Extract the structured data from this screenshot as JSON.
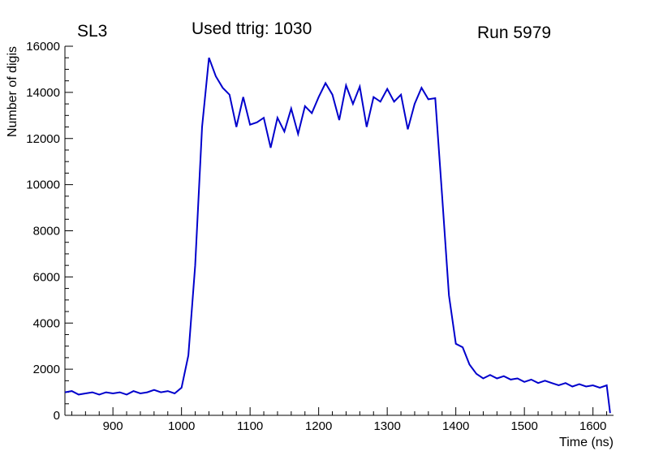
{
  "header": {
    "left_title": "SL3",
    "center_title": "Used ttrig: 1030",
    "right_title": "Run 5979"
  },
  "chart_data": {
    "type": "line",
    "title": "Used ttrig: 1030",
    "xlabel": "Time (ns)",
    "ylabel": "Number of digis",
    "xlim": [
      830,
      1630
    ],
    "ylim": [
      0,
      16000
    ],
    "x_ticks": [
      900,
      1000,
      1100,
      1200,
      1300,
      1400,
      1500,
      1600
    ],
    "y_ticks": [
      0,
      2000,
      4000,
      6000,
      8000,
      10000,
      12000,
      14000,
      16000
    ],
    "x_minor_step": 20,
    "y_minor_step": 500,
    "grid": false,
    "legend": "none",
    "line_color": "#0000cc",
    "axis_color": "#000000",
    "x": [
      830,
      840,
      850,
      860,
      870,
      880,
      890,
      900,
      910,
      920,
      930,
      940,
      950,
      960,
      970,
      980,
      990,
      1000,
      1010,
      1020,
      1030,
      1040,
      1050,
      1060,
      1070,
      1080,
      1090,
      1100,
      1110,
      1120,
      1130,
      1140,
      1150,
      1160,
      1170,
      1180,
      1190,
      1200,
      1210,
      1220,
      1230,
      1240,
      1250,
      1260,
      1270,
      1280,
      1290,
      1300,
      1310,
      1320,
      1330,
      1340,
      1350,
      1360,
      1370,
      1380,
      1390,
      1400,
      1410,
      1420,
      1430,
      1440,
      1450,
      1460,
      1470,
      1480,
      1490,
      1500,
      1510,
      1520,
      1530,
      1540,
      1550,
      1560,
      1570,
      1580,
      1590,
      1600,
      1610,
      1620,
      1625
    ],
    "y": [
      1000,
      1050,
      900,
      950,
      1000,
      900,
      1000,
      950,
      1000,
      900,
      1050,
      950,
      1000,
      1100,
      1000,
      1050,
      950,
      1200,
      2600,
      6500,
      12500,
      15500,
      14700,
      14200,
      13900,
      12500,
      13800,
      12600,
      12700,
      12900,
      11600,
      12900,
      12300,
      13300,
      12200,
      13400,
      13100,
      13800,
      14400,
      13900,
      12800,
      14300,
      13500,
      14250,
      12500,
      13800,
      13600,
      14150,
      13600,
      13900,
      12400,
      13500,
      14200,
      13700,
      13750,
      9500,
      5200,
      3100,
      2950,
      2200,
      1800,
      1600,
      1750,
      1600,
      1700,
      1550,
      1600,
      1450,
      1550,
      1400,
      1500,
      1400,
      1300,
      1400,
      1250,
      1350,
      1250,
      1300,
      1200,
      1300,
      100
    ]
  }
}
